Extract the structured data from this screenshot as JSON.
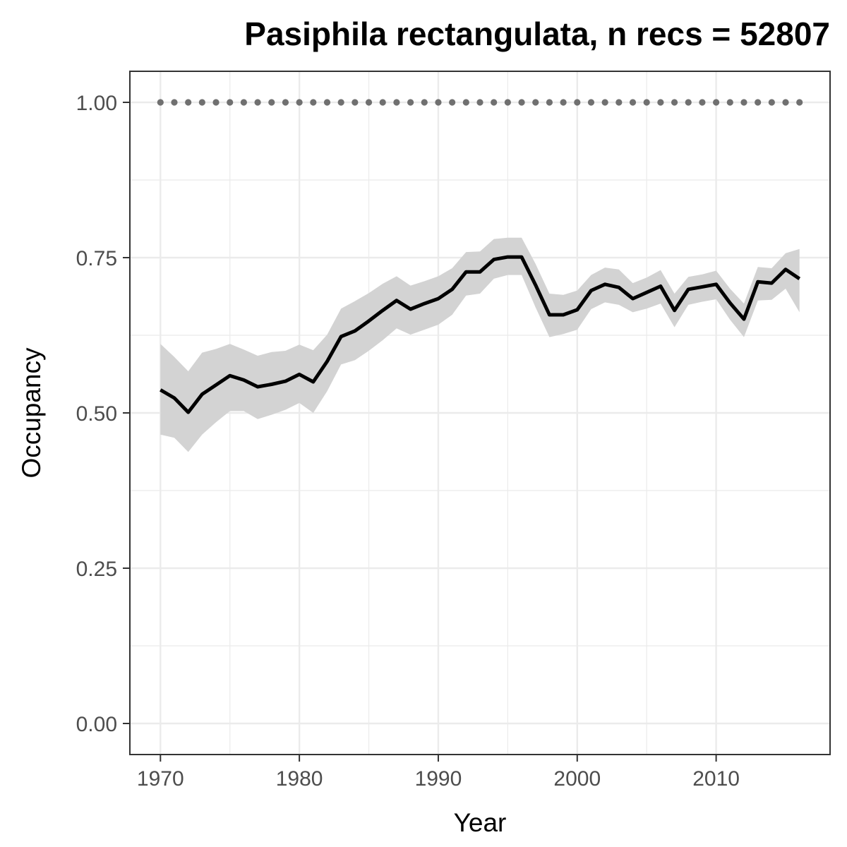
{
  "chart_data": {
    "type": "line",
    "title": "Pasiphila rectangulata, n recs = 52807",
    "xlabel": "Year",
    "ylabel": "Occupancy",
    "xlim": [
      1967.8,
      2018.2
    ],
    "ylim": [
      -0.05,
      1.05
    ],
    "x_ticks": [
      1970,
      1980,
      1990,
      2000,
      2010
    ],
    "x_tick_labels": [
      "1970",
      "1980",
      "1990",
      "2000",
      "2010"
    ],
    "y_ticks": [
      0,
      0.25,
      0.5,
      0.75,
      1.0
    ],
    "y_tick_labels": [
      "0.00",
      "0.25",
      "0.50",
      "0.75",
      "1.00"
    ],
    "grid": true,
    "legend": "none",
    "colors": {
      "line": "#000000",
      "ribbon": "#d3d3d3",
      "reference": "#707070",
      "grid": "#ebebeb",
      "panel_border": "#333333",
      "tick_text": "#4d4d4d"
    },
    "x": [
      1970,
      1971,
      1972,
      1973,
      1974,
      1975,
      1976,
      1977,
      1978,
      1979,
      1980,
      1981,
      1982,
      1983,
      1984,
      1985,
      1986,
      1987,
      1988,
      1989,
      1990,
      1991,
      1992,
      1993,
      1994,
      1995,
      1996,
      1997,
      1998,
      1999,
      2000,
      2001,
      2002,
      2003,
      2004,
      2005,
      2006,
      2007,
      2008,
      2009,
      2010,
      2011,
      2012,
      2013,
      2014,
      2015,
      2016
    ],
    "series": [
      {
        "values": [
          0.537,
          0.524,
          0.501,
          0.53,
          0.545,
          0.56,
          0.553,
          0.542,
          0.546,
          0.551,
          0.562,
          0.55,
          0.583,
          0.623,
          0.632,
          0.648,
          0.665,
          0.681,
          0.667,
          0.676,
          0.684,
          0.699,
          0.727,
          0.727,
          0.747,
          0.751,
          0.751,
          0.706,
          0.658,
          0.658,
          0.666,
          0.697,
          0.707,
          0.702,
          0.684,
          0.694,
          0.704,
          0.665,
          0.699,
          0.703,
          0.707,
          0.677,
          0.651,
          0.711,
          0.709,
          0.731,
          0.716
        ],
        "lower": [
          0.465,
          0.46,
          0.437,
          0.465,
          0.485,
          0.503,
          0.503,
          0.49,
          0.497,
          0.505,
          0.516,
          0.5,
          0.535,
          0.578,
          0.585,
          0.6,
          0.617,
          0.636,
          0.626,
          0.634,
          0.642,
          0.658,
          0.689,
          0.692,
          0.716,
          0.722,
          0.722,
          0.67,
          0.622,
          0.627,
          0.634,
          0.667,
          0.678,
          0.674,
          0.662,
          0.668,
          0.676,
          0.638,
          0.674,
          0.679,
          0.683,
          0.65,
          0.622,
          0.681,
          0.682,
          0.7,
          0.662
        ],
        "upper": [
          0.611,
          0.59,
          0.567,
          0.597,
          0.603,
          0.611,
          0.602,
          0.592,
          0.598,
          0.6,
          0.61,
          0.601,
          0.626,
          0.668,
          0.68,
          0.693,
          0.708,
          0.72,
          0.705,
          0.712,
          0.72,
          0.733,
          0.759,
          0.76,
          0.78,
          0.782,
          0.782,
          0.74,
          0.692,
          0.69,
          0.697,
          0.722,
          0.734,
          0.731,
          0.709,
          0.718,
          0.73,
          0.692,
          0.719,
          0.723,
          0.729,
          0.7,
          0.676,
          0.735,
          0.733,
          0.757,
          0.764
        ]
      }
    ],
    "reference_line": {
      "style": "dotted",
      "y": 1.0
    }
  }
}
